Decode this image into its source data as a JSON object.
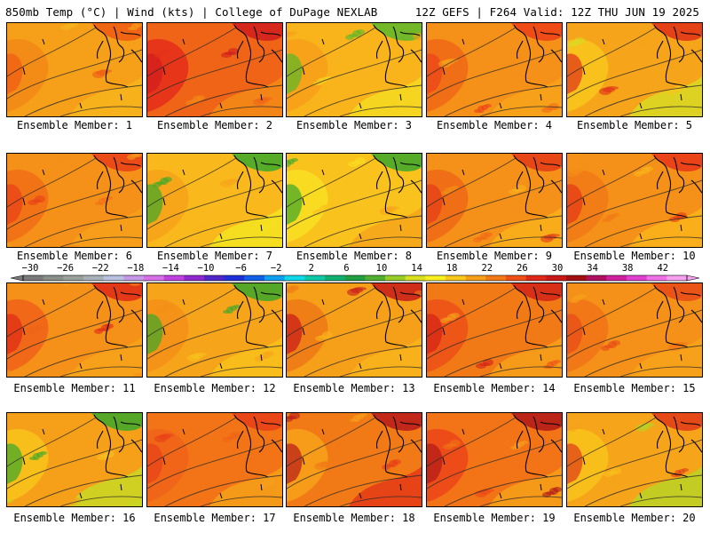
{
  "header": {
    "left": "850mb Temp (°C) | Wind (kts) | College of DuPage NEXLAB",
    "right": "12Z GEFS | F264 Valid: 12Z THU JUN 19 2025"
  },
  "members": [
    {
      "label": "Ensemble Member: 1",
      "palette": [
        "#f6a01a",
        "#f38a16",
        "#f7b51c",
        "#ef5a14"
      ]
    },
    {
      "label": "Ensemble Member: 2",
      "palette": [
        "#f06418",
        "#e4301a",
        "#f38a16",
        "#d01c1c"
      ]
    },
    {
      "label": "Ensemble Member: 3",
      "palette": [
        "#f9b41b",
        "#f6a01a",
        "#f4da21",
        "#5ab82a"
      ]
    },
    {
      "label": "Ensemble Member: 4",
      "palette": [
        "#f59018",
        "#f06a16",
        "#f6a41a",
        "#ec4018"
      ]
    },
    {
      "label": "Ensemble Member: 5",
      "palette": [
        "#f6a41a",
        "#f9c41c",
        "#d8da24",
        "#e03018"
      ]
    },
    {
      "label": "Ensemble Member: 6",
      "palette": [
        "#f59018",
        "#f27016",
        "#f6a01a",
        "#e84018"
      ]
    },
    {
      "label": "Ensemble Member: 7",
      "palette": [
        "#f9b81b",
        "#f6a41a",
        "#f4e321",
        "#3aa82a"
      ]
    },
    {
      "label": "Ensemble Member: 8",
      "palette": [
        "#f9c21c",
        "#f8de22",
        "#f6a41a",
        "#3aa82a"
      ]
    },
    {
      "label": "Ensemble Member: 9",
      "palette": [
        "#f59018",
        "#f06a16",
        "#f8b21b",
        "#e43a18"
      ]
    },
    {
      "label": "Ensemble Member: 10",
      "palette": [
        "#f59018",
        "#f27a16",
        "#f9b41b",
        "#e63618"
      ]
    },
    {
      "label": "Ensemble Member: 11",
      "palette": [
        "#f59018",
        "#f06418",
        "#f6a41a",
        "#e02a18"
      ]
    },
    {
      "label": "Ensemble Member: 12",
      "palette": [
        "#f6a41a",
        "#f59018",
        "#f8c21c",
        "#3aa82a"
      ]
    },
    {
      "label": "Ensemble Member: 13",
      "palette": [
        "#f6a01a",
        "#f07a16",
        "#f8b41b",
        "#c81a1a"
      ]
    },
    {
      "label": "Ensemble Member: 14",
      "palette": [
        "#f27a16",
        "#ec5216",
        "#f6a01a",
        "#d42218"
      ]
    },
    {
      "label": "Ensemble Member: 15",
      "palette": [
        "#f59018",
        "#f27416",
        "#f6a41a",
        "#e84a18"
      ]
    },
    {
      "label": "Ensemble Member: 16",
      "palette": [
        "#f6a01a",
        "#f8c21c",
        "#c8d824",
        "#3aa82a"
      ]
    },
    {
      "label": "Ensemble Member: 17",
      "palette": [
        "#f27416",
        "#f06418",
        "#f6a01a",
        "#e84018"
      ]
    },
    {
      "label": "Ensemble Member: 18",
      "palette": [
        "#f27a16",
        "#f6a01a",
        "#e43a18",
        "#b81a1a"
      ]
    },
    {
      "label": "Ensemble Member: 19",
      "palette": [
        "#f27416",
        "#ec4818",
        "#f6a01a",
        "#b01818"
      ]
    },
    {
      "label": "Ensemble Member: 20",
      "palette": [
        "#f6a41a",
        "#f8c21c",
        "#b8d424",
        "#e03a18"
      ]
    }
  ],
  "colorbar": {
    "tick_labels": [
      "−30",
      "−26",
      "−22",
      "−18",
      "−14",
      "−10",
      "−6",
      "−2",
      "2",
      "6",
      "10",
      "14",
      "18",
      "22",
      "26",
      "30",
      "34",
      "38",
      "42"
    ],
    "colors": [
      "#7a7a7a",
      "#8a8f8a",
      "#9aa09a",
      "#a8b0b8",
      "#b8c2e0",
      "#c898e8",
      "#d870e8",
      "#c040e0",
      "#9028d0",
      "#5028c8",
      "#2030d8",
      "#1060e8",
      "#10a0f0",
      "#10d8e8",
      "#10c8a8",
      "#10b070",
      "#20a040",
      "#50b030",
      "#98cc28",
      "#d8e020",
      "#f8f020",
      "#f8c81c",
      "#f6a01a",
      "#f27a16",
      "#ee5016",
      "#e02818",
      "#c81818",
      "#a01010",
      "#b01060",
      "#d020a0",
      "#e040d0",
      "#f070e8",
      "#f8a0f0"
    ]
  }
}
